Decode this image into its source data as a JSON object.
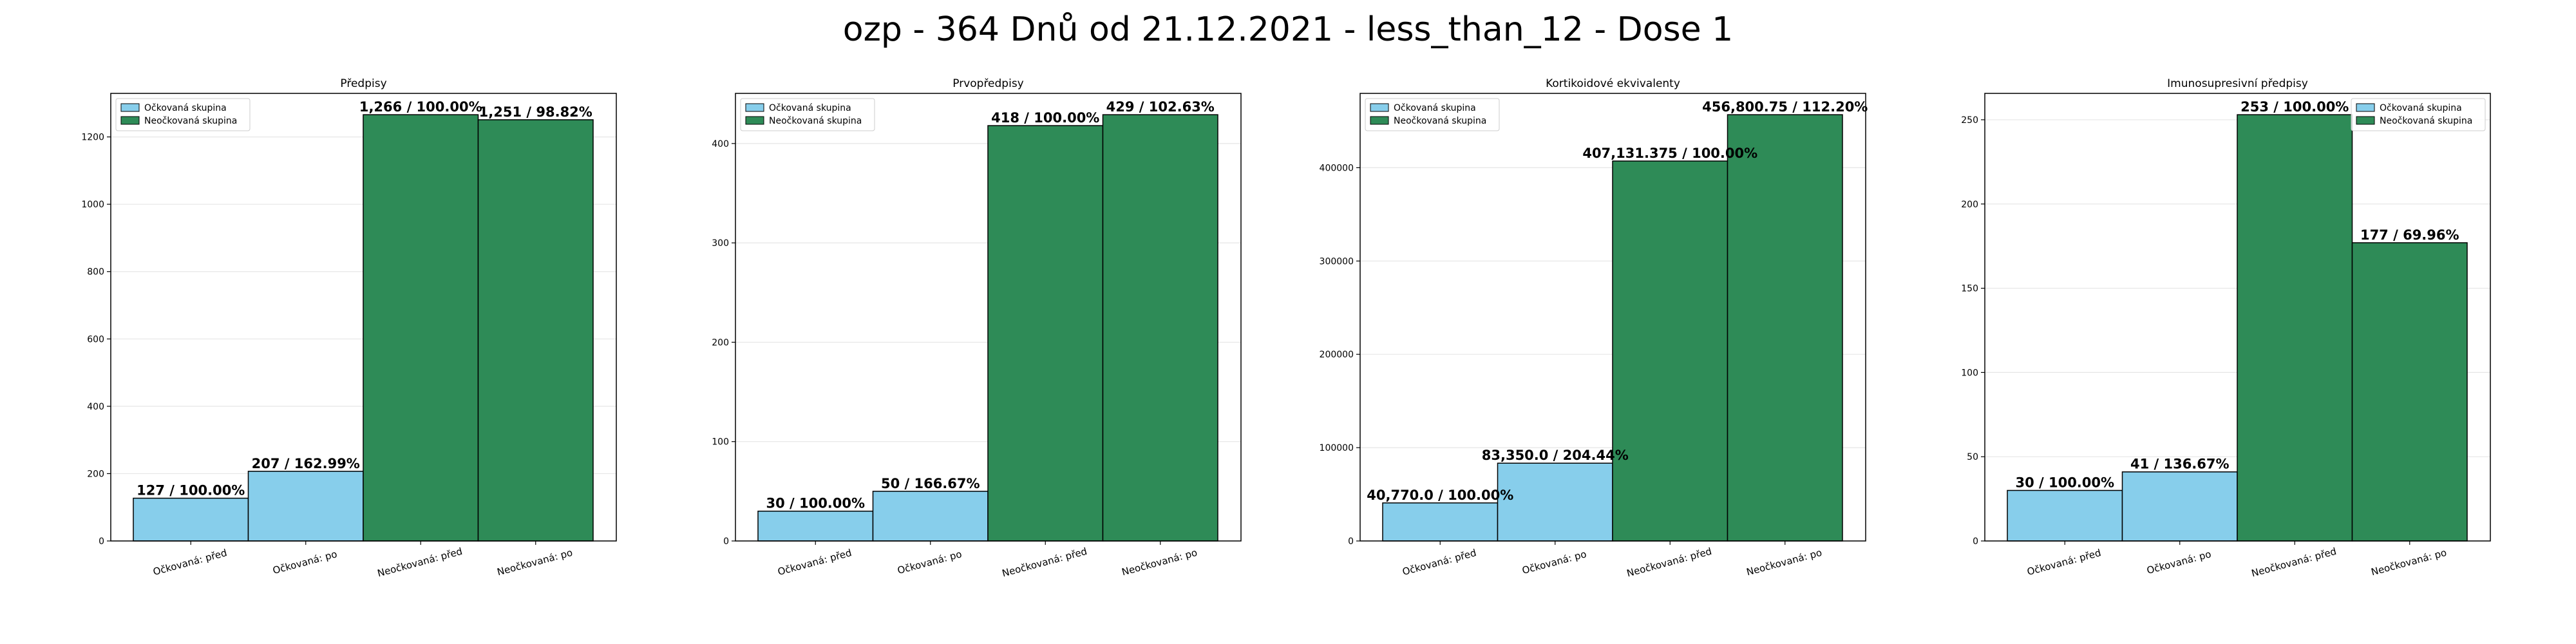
{
  "suptitle": "ozp - 364 Dnů od 21.12.2021 - less_than_12 - Dose 1",
  "colors": {
    "vaccinated": "#87CEEB",
    "unvaccinated": "#2E8B57",
    "edge": "#000000",
    "grid": "#e6e6e6"
  },
  "chart_data": [
    {
      "type": "bar",
      "title": "Předpisy",
      "categories": [
        "Očkovaná: před",
        "Očkovaná: po",
        "Neočkovaná: před",
        "Neočkovaná: po"
      ],
      "values": [
        127,
        207,
        1266,
        1251
      ],
      "value_labels": [
        "127 / 100.00%",
        "207 / 162.99%",
        "1,266 / 100.00%",
        "1,251 / 98.82%"
      ],
      "series_index": [
        0,
        0,
        1,
        1
      ],
      "legend": [
        "Očkovaná skupina",
        "Neočkovaná skupina"
      ],
      "legend_position": "upper-left",
      "ylim": [
        0,
        1329.3
      ],
      "yticks": [
        0,
        200,
        400,
        600,
        800,
        1000,
        1200
      ],
      "ytick_labels": [
        "0",
        "200",
        "400",
        "600",
        "800",
        "1000",
        "1200"
      ],
      "grid": true
    },
    {
      "type": "bar",
      "title": "Prvopředpisy",
      "categories": [
        "Očkovaná: před",
        "Očkovaná: po",
        "Neočkovaná: před",
        "Neočkovaná: po"
      ],
      "values": [
        30,
        50,
        418,
        429
      ],
      "value_labels": [
        "30 / 100.00%",
        "50 / 166.67%",
        "418 / 100.00%",
        "429 / 102.63%"
      ],
      "series_index": [
        0,
        0,
        1,
        1
      ],
      "legend": [
        "Očkovaná skupina",
        "Neočkovaná skupina"
      ],
      "legend_position": "upper-left",
      "ylim": [
        0,
        450.45
      ],
      "yticks": [
        0,
        100,
        200,
        300,
        400
      ],
      "ytick_labels": [
        "0",
        "100",
        "200",
        "300",
        "400"
      ],
      "grid": true
    },
    {
      "type": "bar",
      "title": "Kortikoidové ekvivalenty",
      "categories": [
        "Očkovaná: před",
        "Očkovaná: po",
        "Neočkovaná: před",
        "Neočkovaná: po"
      ],
      "values": [
        40770.0,
        83350.0,
        407131.375,
        456800.75
      ],
      "value_labels": [
        "40,770.0 / 100.00%",
        "83,350.0 / 204.44%",
        "407,131.375 / 100.00%",
        "456,800.75 / 112.20%"
      ],
      "series_index": [
        0,
        0,
        1,
        1
      ],
      "legend": [
        "Očkovaná skupina",
        "Neočkovaná skupina"
      ],
      "legend_position": "upper-left",
      "ylim": [
        0,
        479640.8
      ],
      "yticks": [
        0,
        100000,
        200000,
        300000,
        400000
      ],
      "ytick_labels": [
        "0",
        "100000",
        "200000",
        "300000",
        "400000"
      ],
      "grid": true
    },
    {
      "type": "bar",
      "title": "Imunosupresivní předpisy",
      "categories": [
        "Očkovaná: před",
        "Očkovaná: po",
        "Neočkovaná: před",
        "Neočkovaná: po"
      ],
      "values": [
        30,
        41,
        253,
        177
      ],
      "value_labels": [
        "30 / 100.00%",
        "41 / 136.67%",
        "253 / 100.00%",
        "177 / 69.96%"
      ],
      "series_index": [
        0,
        0,
        1,
        1
      ],
      "legend": [
        "Očkovaná skupina",
        "Neočkovaná skupina"
      ],
      "legend_position": "upper-right",
      "ylim": [
        0,
        265.65
      ],
      "yticks": [
        0,
        50,
        100,
        150,
        200,
        250
      ],
      "ytick_labels": [
        "0",
        "50",
        "100",
        "150",
        "200",
        "250"
      ],
      "grid": true
    }
  ]
}
